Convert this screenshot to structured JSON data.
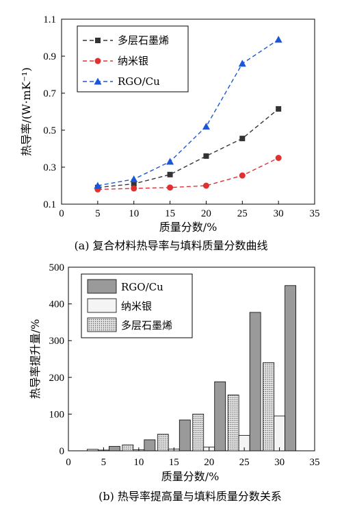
{
  "chart_data": [
    {
      "type": "line",
      "caption": "(a) 复合材料热导率与填料质量分数曲线",
      "xlabel": "质量分数/%",
      "ylabel": "热导率/(W·mK⁻¹)",
      "xlim": [
        0,
        35
      ],
      "ylim": [
        0.1,
        1.1
      ],
      "xticks": [
        "0",
        "5",
        "10",
        "15",
        "20",
        "25",
        "30",
        "35"
      ],
      "yticks": [
        "0.1",
        "0.3",
        "0.5",
        "0.7",
        "0.9",
        "1.1"
      ],
      "legend_position": "top-left",
      "grid": false,
      "x": [
        5,
        10,
        15,
        20,
        25,
        30
      ],
      "series": [
        {
          "name": "多层石墨烯",
          "marker": "square",
          "color": "#333333",
          "values": [
            0.19,
            0.21,
            0.26,
            0.36,
            0.455,
            0.615
          ]
        },
        {
          "name": "纳米银",
          "marker": "circle",
          "color": "#e03030",
          "values": [
            0.18,
            0.185,
            0.19,
            0.2,
            0.255,
            0.35
          ]
        },
        {
          "name": "RGO/Cu",
          "marker": "triangle",
          "color": "#1a56d6",
          "values": [
            0.2,
            0.235,
            0.33,
            0.52,
            0.86,
            0.99
          ]
        }
      ]
    },
    {
      "type": "bar",
      "caption": "(b) 热导率提高量与填料质量分数关系",
      "xlabel": "质量分数/%",
      "ylabel": "热导率提升量/%",
      "xlim": [
        0,
        35
      ],
      "ylim": [
        0,
        500
      ],
      "xticks": [
        "0",
        "5",
        "10",
        "15",
        "20",
        "25",
        "30",
        "35"
      ],
      "yticks": [
        "0",
        "100",
        "200",
        "300",
        "400",
        "500"
      ],
      "legend_position": "top-left",
      "grid": false,
      "x": [
        5,
        10,
        15,
        20,
        25,
        30
      ],
      "series": [
        {
          "name": "RGO/Cu",
          "fill": "#9a9a9a",
          "values": [
            12,
            30,
            84,
            188,
            377,
            450
          ]
        },
        {
          "name": "纳米银",
          "fill": "#f4f4f4",
          "values": [
            2,
            3,
            5,
            10,
            42,
            95
          ]
        },
        {
          "name": "多层石墨烯",
          "fill": "dots",
          "values": [
            4,
            16,
            45,
            100,
            152,
            240
          ]
        }
      ]
    }
  ]
}
